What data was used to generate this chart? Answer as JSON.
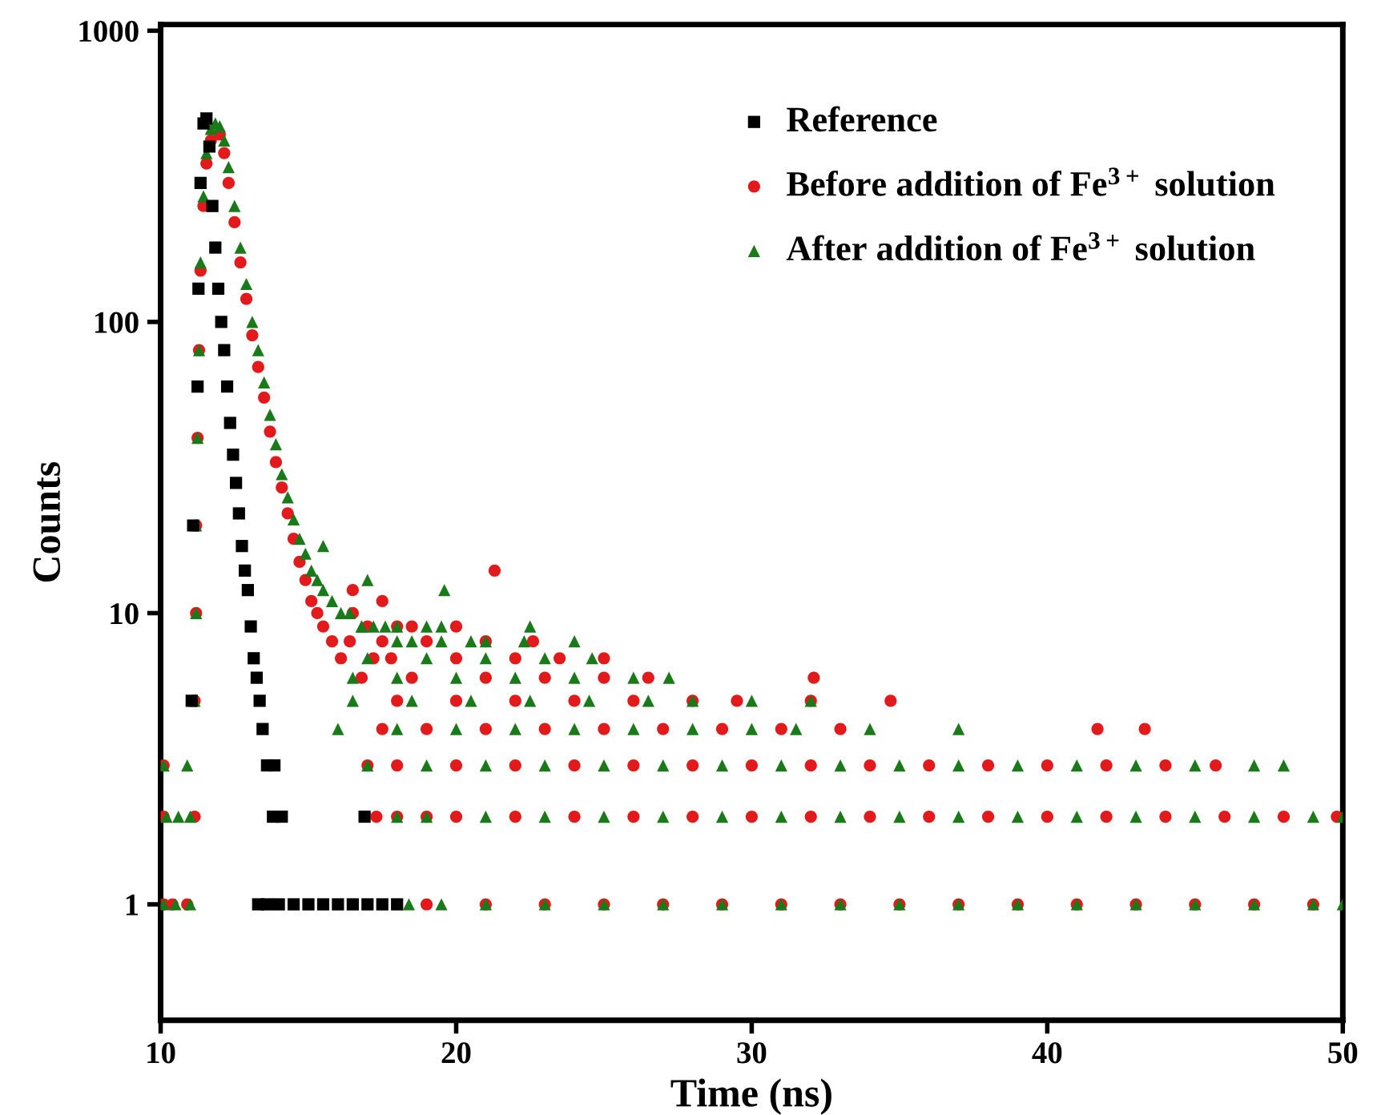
{
  "chart_data": {
    "type": "scatter",
    "xlabel": "Time (ns)",
    "ylabel": "Counts",
    "log": "y",
    "xlim": [
      10,
      50
    ],
    "xticks": [
      10,
      20,
      30,
      40,
      50
    ],
    "ylim": [
      0.4,
      1050
    ],
    "yticks": [
      1,
      10,
      100,
      1000
    ],
    "grid": false,
    "legend": "top right",
    "series": [
      {
        "name": "Reference",
        "color": "#000000",
        "marker": "square",
        "x": [
          11.05,
          11.1,
          11.25,
          11.28,
          11.35,
          11.45,
          11.55,
          11.65,
          11.75,
          11.85,
          11.95,
          12.05,
          12.15,
          12.25,
          12.35,
          12.45,
          12.55,
          12.65,
          12.75,
          12.85,
          12.95,
          13.05,
          13.15,
          13.25,
          13.35,
          13.45,
          13.6,
          13.85,
          13.8,
          14.1,
          16.9,
          13.3,
          13.6,
          14.0,
          14.5,
          15.0,
          15.5,
          16.0,
          16.5,
          17.0,
          17.5,
          18.0
        ],
        "values": [
          5,
          20,
          60,
          130,
          300,
          480,
          500,
          400,
          250,
          180,
          130,
          100,
          80,
          60,
          45,
          35,
          28,
          22,
          17,
          14,
          12,
          9,
          7,
          6,
          5,
          4,
          3,
          3,
          2,
          2,
          2,
          1,
          1,
          1,
          1,
          1,
          1,
          1,
          1,
          1,
          1,
          1
        ]
      },
      {
        "name": "Before addition of Fe$^{3+}$ solution",
        "color": "#e31a1c",
        "marker": "circle",
        "x": [
          10.1,
          10.4,
          10.9,
          10.1,
          10.1,
          11.15,
          11.15,
          11.2,
          11.2,
          11.25,
          11.3,
          11.35,
          11.45,
          11.55,
          11.7,
          12.0,
          12.15,
          12.3,
          12.5,
          12.7,
          12.9,
          13.1,
          13.3,
          13.5,
          13.7,
          13.9,
          14.1,
          14.3,
          14.5,
          14.7,
          14.9,
          15.1,
          15.3,
          15.5,
          15.8,
          16.1,
          16.4,
          16.8,
          17.2,
          16.5,
          17.5,
          16.5,
          18.0,
          17.0,
          18.5,
          20.0,
          17.5,
          19.0,
          21.0,
          22.6,
          17.8,
          20.0,
          22.0,
          23.5,
          25.0,
          18.5,
          21.0,
          23.0,
          25.0,
          26.5,
          32.1,
          18.0,
          20.0,
          22.0,
          24.0,
          26.0,
          28.0,
          29.5,
          32.0,
          34.7,
          17.5,
          19.0,
          21.0,
          23.0,
          25.0,
          27.0,
          29.0,
          31.0,
          33.0,
          41.7,
          43.3,
          17.0,
          18.0,
          20.0,
          22.0,
          24.0,
          26.0,
          28.0,
          30.0,
          32.0,
          34.0,
          36.0,
          38.0,
          40.0,
          42.0,
          44.0,
          45.7,
          17.3,
          18.0,
          19.0,
          20.0,
          22.0,
          24.0,
          26.0,
          28.0,
          30.0,
          32.0,
          34.0,
          36.0,
          38.0,
          40.0,
          42.0,
          44.0,
          46.0,
          48.0,
          49.8,
          19.0,
          21.0,
          23.0,
          25.0,
          27.0,
          29.0,
          31.0,
          33.0,
          35.0,
          37.0,
          39.0,
          41.0,
          43.0,
          45.0,
          47.0,
          49.0,
          21.3
        ],
        "values": [
          1,
          1,
          1,
          2,
          3,
          2,
          5,
          10,
          20,
          40,
          80,
          150,
          250,
          350,
          420,
          440,
          380,
          300,
          220,
          160,
          120,
          90,
          70,
          55,
          42,
          33,
          27,
          22,
          18,
          15,
          13,
          11,
          10,
          9,
          8,
          7,
          8,
          6,
          7,
          12,
          11,
          10,
          9,
          9,
          9,
          9,
          8,
          8,
          8,
          8,
          7,
          7,
          7,
          7,
          7,
          6,
          6,
          6,
          6,
          6,
          6,
          5,
          5,
          5,
          5,
          5,
          5,
          5,
          5,
          5,
          4,
          4,
          4,
          4,
          4,
          4,
          4,
          4,
          4,
          4,
          4,
          3,
          3,
          3,
          3,
          3,
          3,
          3,
          3,
          3,
          3,
          3,
          3,
          3,
          3,
          3,
          3,
          2,
          2,
          2,
          2,
          2,
          2,
          2,
          2,
          2,
          2,
          2,
          2,
          2,
          2,
          2,
          2,
          2,
          2,
          2,
          1,
          1,
          1,
          1,
          1,
          1,
          1,
          1,
          1,
          1,
          1,
          1,
          1,
          1,
          1,
          1,
          14
        ]
      },
      {
        "name": "After addition of Fe$^{3+}$ solution",
        "color": "#1a7a1a",
        "marker": "triangle",
        "x": [
          10.1,
          10.5,
          11.0,
          10.2,
          10.6,
          11.0,
          10.1,
          10.9,
          11.15,
          11.2,
          11.2,
          11.25,
          11.3,
          11.35,
          11.45,
          11.55,
          11.7,
          11.85,
          12.0,
          12.15,
          12.3,
          12.5,
          12.7,
          12.9,
          13.1,
          13.3,
          13.5,
          13.7,
          13.9,
          14.1,
          14.3,
          14.5,
          14.7,
          14.9,
          15.1,
          15.3,
          15.5,
          15.8,
          16.1,
          16.4,
          16.8,
          17.2,
          17.6,
          18.0,
          18.5,
          19.0,
          19.5,
          20.5,
          15.5,
          17.0,
          19.6,
          22.5,
          16.8,
          18.0,
          19.5,
          21.0,
          22.3,
          24.0,
          17.0,
          19.0,
          21.0,
          23.0,
          24.6,
          16.5,
          18.0,
          20.0,
          22.0,
          24.0,
          26.0,
          27.2,
          16.5,
          18.5,
          20.5,
          22.5,
          24.5,
          26.5,
          28.0,
          30.0,
          32.0,
          16.0,
          18.0,
          20.0,
          22.0,
          24.0,
          26.0,
          28.0,
          30.0,
          31.5,
          34.0,
          37.0,
          17.0,
          19.0,
          21.0,
          23.0,
          25.0,
          27.0,
          29.0,
          31.0,
          33.0,
          35.0,
          37.0,
          39.0,
          41.0,
          43.0,
          45.0,
          47.0,
          48.0,
          18.0,
          19.0,
          21.0,
          23.0,
          25.0,
          27.0,
          29.0,
          31.0,
          33.0,
          35.0,
          37.0,
          39.0,
          41.0,
          43.0,
          45.0,
          47.0,
          49.0,
          50.0,
          18.4,
          19.5,
          21.0,
          23.0,
          25.0,
          27.0,
          29.0,
          31.0,
          33.0,
          35.0,
          37.0,
          39.0,
          41.0,
          43.0,
          45.0,
          47.0,
          49.0,
          50.0
        ],
        "values": [
          1,
          1,
          1,
          2,
          2,
          2,
          3,
          3,
          5,
          10,
          20,
          40,
          80,
          160,
          270,
          380,
          460,
          480,
          470,
          420,
          340,
          250,
          180,
          135,
          100,
          80,
          62,
          48,
          38,
          30,
          25,
          21,
          18,
          16,
          14,
          13,
          12,
          11,
          10,
          10,
          9,
          9,
          9,
          8,
          8,
          9,
          8,
          8,
          17,
          13,
          12,
          9,
          9,
          9,
          9,
          8,
          8,
          8,
          7,
          7,
          7,
          7,
          7,
          6,
          6,
          6,
          6,
          6,
          6,
          6,
          5,
          5,
          5,
          5,
          5,
          5,
          5,
          5,
          5,
          4,
          4,
          4,
          4,
          4,
          4,
          4,
          4,
          4,
          4,
          4,
          3,
          3,
          3,
          3,
          3,
          3,
          3,
          3,
          3,
          3,
          3,
          3,
          3,
          3,
          3,
          3,
          3,
          2,
          2,
          2,
          2,
          2,
          2,
          2,
          2,
          2,
          2,
          2,
          2,
          2,
          2,
          2,
          2,
          2,
          2,
          1,
          1,
          1,
          1,
          1,
          1,
          1,
          1,
          1,
          1,
          1,
          1,
          1,
          1,
          1,
          1,
          1,
          1
        ]
      }
    ]
  }
}
